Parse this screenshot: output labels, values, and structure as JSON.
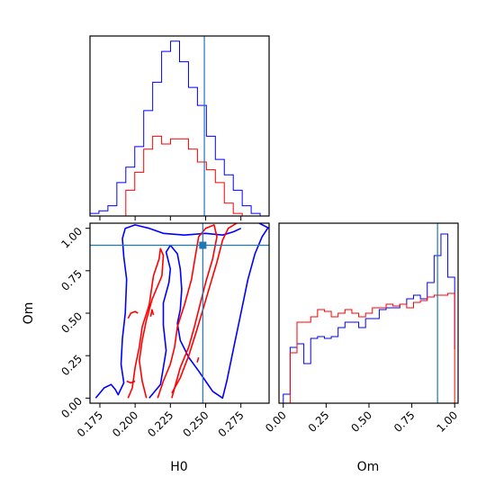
{
  "colors": {
    "blue": "#0000ff",
    "red": "#ff0000",
    "truth": "#1f77b4"
  },
  "chart_data": [
    {
      "type": "histogram",
      "panel": "H0-marginal",
      "xlim": [
        0.165,
        0.295
      ],
      "bins_edges": [
        0.165,
        0.1715,
        0.178,
        0.1845,
        0.191,
        0.1975,
        0.204,
        0.2105,
        0.217,
        0.2235,
        0.23,
        0.2365,
        0.243,
        0.2495,
        0.256,
        0.2625,
        0.269,
        0.2755,
        0.282,
        0.2885,
        0.295
      ],
      "series": [
        {
          "color": "blue",
          "counts": [
            1,
            2,
            4,
            13,
            19,
            27,
            41,
            52,
            64,
            68,
            60,
            50,
            43,
            31,
            22,
            16,
            10,
            4,
            1,
            0
          ]
        },
        {
          "color": "red",
          "counts": [
            0,
            0,
            0,
            0,
            10,
            17,
            26,
            31,
            28,
            30,
            30,
            26,
            21,
            18,
            13,
            5,
            1,
            0,
            0,
            0
          ]
        }
      ],
      "truth_x": 0.248
    },
    {
      "type": "histogram",
      "panel": "Om-marginal",
      "xlim": [
        -0.025,
        1.02
      ],
      "xlabel": "Om",
      "xticks": [
        "0.00",
        "0.25",
        "0.50",
        "0.75",
        "1.00"
      ],
      "bins_edges": [
        0.0,
        0.04,
        0.08,
        0.12,
        0.16,
        0.2,
        0.24,
        0.28,
        0.32,
        0.36,
        0.4,
        0.44,
        0.48,
        0.52,
        0.56,
        0.6,
        0.64,
        0.68,
        0.72,
        0.76,
        0.8,
        0.84,
        0.88,
        0.92,
        0.96,
        1.0
      ],
      "series": [
        {
          "color": "blue",
          "counts": [
            5,
            31,
            33,
            22,
            36,
            37,
            36,
            37,
            42,
            45,
            45,
            42,
            47,
            47,
            52,
            53,
            53,
            55,
            58,
            60,
            58,
            67,
            82,
            94,
            70,
            30
          ]
        },
        {
          "color": "red",
          "counts": [
            0,
            28,
            45,
            45,
            48,
            52,
            51,
            48,
            50,
            52,
            50,
            48,
            50,
            53,
            53,
            55,
            54,
            55,
            53,
            56,
            57,
            59,
            60,
            60,
            61,
            0
          ]
        }
      ],
      "truth_x": 0.9
    },
    {
      "type": "contour",
      "panel": "H0-Om-joint",
      "xlim": [
        0.168,
        0.295
      ],
      "ylim": [
        -0.03,
        1.03
      ],
      "xlabel": "H0",
      "ylabel": "Om",
      "xticks": [
        "0.175",
        "0.200",
        "0.225",
        "0.250",
        "0.275"
      ],
      "yticks": [
        "0.00",
        "0.25",
        "0.50",
        "0.75",
        "1.00"
      ],
      "truth_point": {
        "x": 0.248,
        "y": 0.9
      },
      "contours": [
        {
          "color": "blue",
          "points": [
            [
              0.172,
              0.0
            ],
            [
              0.178,
              0.06
            ],
            [
              0.183,
              0.08
            ],
            [
              0.186,
              0.05
            ],
            [
              0.188,
              0.02
            ],
            [
              0.192,
              0.09
            ],
            [
              0.19,
              0.2
            ],
            [
              0.191,
              0.35
            ],
            [
              0.193,
              0.5
            ],
            [
              0.194,
              0.7
            ],
            [
              0.192,
              0.83
            ],
            [
              0.191,
              0.94
            ],
            [
              0.193,
              1.0
            ],
            [
              0.2,
              1.02
            ],
            [
              0.21,
              1.0
            ],
            [
              0.22,
              0.97
            ],
            [
              0.235,
              0.96
            ],
            [
              0.25,
              0.97
            ],
            [
              0.262,
              0.96
            ],
            [
              0.27,
              0.98
            ],
            [
              0.275,
              1.0
            ]
          ]
        },
        {
          "color": "blue",
          "points": [
            [
              0.288,
              1.03
            ],
            [
              0.295,
              1.0
            ]
          ]
        },
        {
          "color": "blue",
          "points": [
            [
              0.21,
              0.0
            ],
            [
              0.218,
              0.08
            ],
            [
              0.22,
              0.18
            ],
            [
              0.222,
              0.28
            ],
            [
              0.22,
              0.43
            ],
            [
              0.22,
              0.56
            ],
            [
              0.224,
              0.68
            ],
            [
              0.225,
              0.76
            ],
            [
              0.222,
              0.86
            ],
            [
              0.225,
              0.9
            ],
            [
              0.23,
              0.85
            ],
            [
              0.232,
              0.76
            ],
            [
              0.233,
              0.64
            ],
            [
              0.232,
              0.52
            ],
            [
              0.23,
              0.44
            ],
            [
              0.232,
              0.34
            ],
            [
              0.238,
              0.24
            ],
            [
              0.245,
              0.16
            ],
            [
              0.25,
              0.1
            ],
            [
              0.255,
              0.04
            ],
            [
              0.262,
              0.0
            ],
            [
              0.265,
              0.1
            ],
            [
              0.27,
              0.3
            ],
            [
              0.275,
              0.5
            ],
            [
              0.28,
              0.7
            ],
            [
              0.285,
              0.85
            ],
            [
              0.29,
              0.95
            ],
            [
              0.294,
              1.0
            ]
          ]
        }
      ],
      "contours_red": [
        {
          "color": "red",
          "points": [
            [
              0.195,
              0.0
            ],
            [
              0.198,
              0.06
            ],
            [
              0.2,
              0.18
            ],
            [
              0.203,
              0.3
            ],
            [
              0.205,
              0.42
            ],
            [
              0.21,
              0.55
            ],
            [
              0.213,
              0.72
            ],
            [
              0.217,
              0.82
            ],
            [
              0.218,
              0.88
            ],
            [
              0.22,
              0.84
            ],
            [
              0.219,
              0.72
            ],
            [
              0.212,
              0.58
            ],
            [
              0.208,
              0.46
            ],
            [
              0.205,
              0.34
            ],
            [
              0.203,
              0.22
            ],
            [
              0.205,
              0.1
            ],
            [
              0.208,
              0.0
            ]
          ]
        },
        {
          "color": "red",
          "points": [
            [
              0.216,
              0.0
            ],
            [
              0.22,
              0.1
            ],
            [
              0.225,
              0.2
            ],
            [
              0.228,
              0.3
            ],
            [
              0.23,
              0.42
            ],
            [
              0.235,
              0.55
            ],
            [
              0.24,
              0.7
            ],
            [
              0.243,
              0.85
            ],
            [
              0.245,
              0.95
            ],
            [
              0.25,
              1.0
            ],
            [
              0.256,
              1.02
            ],
            [
              0.258,
              0.95
            ],
            [
              0.255,
              0.82
            ],
            [
              0.25,
              0.68
            ],
            [
              0.246,
              0.55
            ],
            [
              0.242,
              0.42
            ],
            [
              0.238,
              0.3
            ],
            [
              0.232,
              0.18
            ],
            [
              0.228,
              0.06
            ],
            [
              0.226,
              0.0
            ]
          ]
        },
        {
          "color": "red",
          "points": [
            [
              0.226,
              0.03
            ],
            [
              0.232,
              0.12
            ],
            [
              0.238,
              0.25
            ],
            [
              0.243,
              0.38
            ],
            [
              0.248,
              0.52
            ],
            [
              0.253,
              0.66
            ],
            [
              0.258,
              0.8
            ],
            [
              0.262,
              0.93
            ],
            [
              0.266,
              1.0
            ],
            [
              0.272,
              1.03
            ]
          ]
        },
        {
          "color": "red",
          "points": [
            [
              0.195,
              0.47
            ],
            [
              0.197,
              0.5
            ],
            [
              0.2,
              0.51
            ],
            [
              0.202,
              0.5
            ]
          ]
        },
        {
          "color": "red",
          "points": [
            [
              0.194,
              0.1
            ],
            [
              0.197,
              0.09
            ],
            [
              0.2,
              0.1
            ]
          ]
        },
        {
          "color": "red",
          "points": [
            [
              0.211,
              0.48
            ],
            [
              0.212,
              0.52
            ],
            [
              0.213,
              0.49
            ]
          ]
        },
        {
          "color": "red",
          "points": [
            [
              0.244,
              0.21
            ],
            [
              0.245,
              0.24
            ]
          ]
        }
      ]
    }
  ]
}
